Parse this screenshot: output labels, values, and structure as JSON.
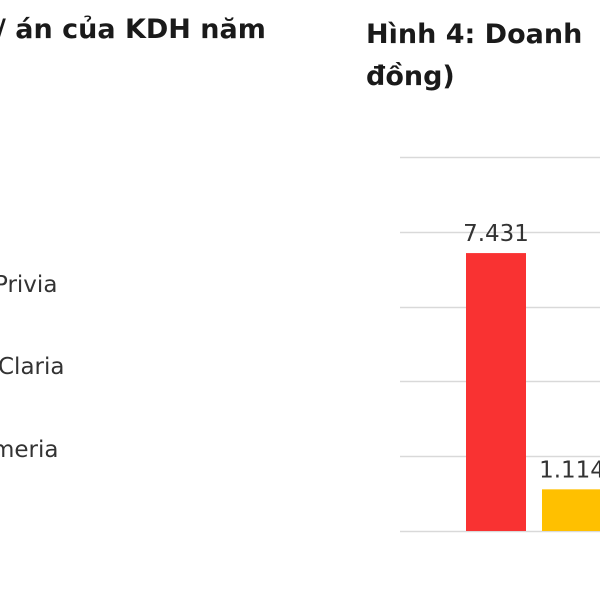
{
  "left_panel": {
    "title": "/ án của KDH năm",
    "project_labels": [
      "Privia",
      "Claria",
      "meria"
    ]
  },
  "right_panel": {
    "title_line1": "Hình 4: Doanh",
    "title_line2": "đồng)"
  },
  "chart_data": {
    "type": "bar",
    "categories": [
      "",
      ""
    ],
    "values": [
      7431,
      1114
    ],
    "value_labels": [
      "7.431",
      "1.114"
    ],
    "colors": [
      "#F93232",
      "#FFC000"
    ],
    "ylim": [
      0,
      10000
    ],
    "grid": true,
    "gridline_values": [
      0,
      2000,
      4000,
      6000,
      8000,
      10000
    ],
    "gridline_color": "#D9D9D9"
  }
}
